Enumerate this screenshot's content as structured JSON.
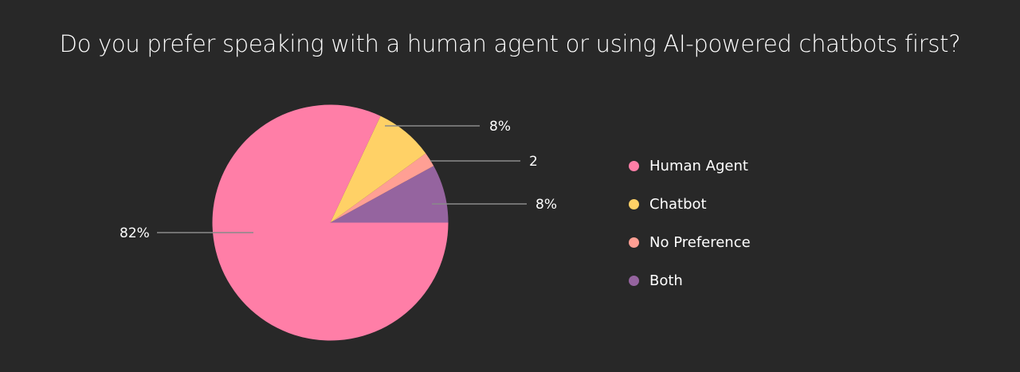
{
  "chart_data": {
    "type": "pie",
    "title": "Do you prefer speaking with a human agent or using AI-powered chatbots first?",
    "categories": [
      "Human Agent",
      "Chatbot",
      "No Preference",
      "Both"
    ],
    "values": [
      82,
      8,
      2,
      8
    ],
    "data_labels": [
      "82%",
      "8%",
      "2",
      "8%"
    ],
    "colors": [
      "#FF7EA7",
      "#FFD166",
      "#FF9F94",
      "#95649F"
    ],
    "legend_position": "right",
    "background": "#282828"
  },
  "title": "Do you prefer speaking with a human agent or using AI-powered chatbots first?",
  "labels": {
    "human": "82%",
    "chatbot": "8%",
    "nopref": "2",
    "both": "8%"
  },
  "legend": [
    {
      "label": "Human Agent",
      "color": "#FF7EA7"
    },
    {
      "label": "Chatbot",
      "color": "#FFD166"
    },
    {
      "label": "No Preference",
      "color": "#FF9F94"
    },
    {
      "label": "Both",
      "color": "#95649F"
    }
  ]
}
